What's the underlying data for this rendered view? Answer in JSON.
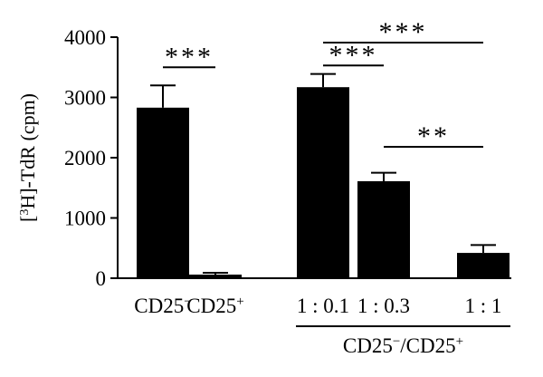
{
  "chart_data": {
    "type": "bar",
    "categories": [
      "CD25−",
      "CD25+",
      "1 : 0.1",
      "1 : 0.3",
      "1 : 1"
    ],
    "category_labels": [
      {
        "base": "CD25",
        "sup": "−"
      },
      {
        "base": "CD25",
        "sup": "+"
      },
      {
        "base": "1 : 0.1",
        "sup": ""
      },
      {
        "base": "1 : 0.3",
        "sup": ""
      },
      {
        "base": "1 : 1",
        "sup": ""
      }
    ],
    "values": [
      2830,
      60,
      3170,
      1610,
      420
    ],
    "errors": [
      370,
      30,
      220,
      140,
      130
    ],
    "ylabel": {
      "prefix": "[",
      "sup": "3",
      "main": "H]-TdR (cpm)"
    },
    "ylim": [
      0,
      4000
    ],
    "yticks": [
      0,
      1000,
      2000,
      3000,
      4000
    ],
    "group": {
      "label_base": "CD25",
      "label_sup1": "−",
      "label_mid": "/CD25",
      "label_sup2": "+",
      "categories": [
        2,
        4
      ]
    },
    "significance": [
      {
        "from": 0,
        "to": 1,
        "label": "***",
        "level": 3500
      },
      {
        "from": 2,
        "to": 3,
        "label": "***",
        "level": 3530
      },
      {
        "from": 2,
        "to": 4,
        "label": "***",
        "level": 3910
      },
      {
        "from": 3,
        "to": 4,
        "label": "**",
        "level": 2180
      }
    ],
    "bar_color": "#000000",
    "grid": false,
    "legend": "none"
  }
}
